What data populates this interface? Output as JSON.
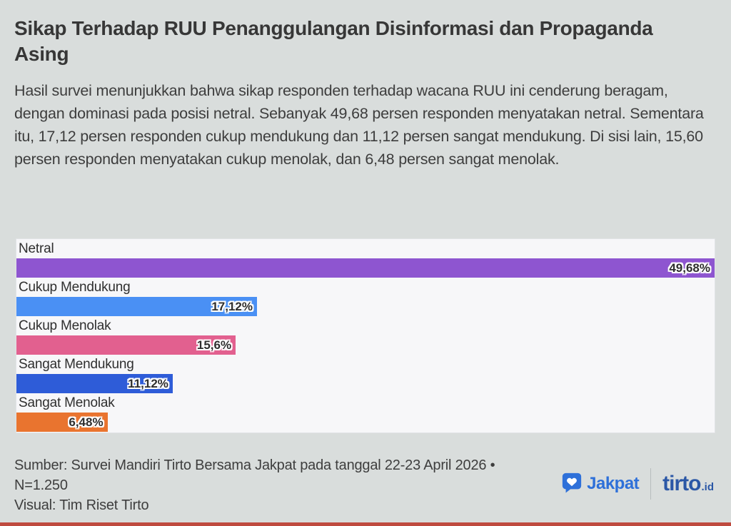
{
  "page": {
    "background_color": "#d9dddc",
    "accent_bar_color": "#bf4a3f"
  },
  "header": {
    "title": "Sikap Terhadap RUU Penanggulangan Disinformasi dan Propaganda Asing"
  },
  "intro": {
    "text": "Hasil survei menunjukkan bahwa sikap responden terhadap wacana RUU ini cenderung beragam, dengan dominasi pada posisi netral. Sebanyak 49,68 persen responden menyatakan netral. Sementara itu, 17,12 persen responden cukup mendukung dan 11,12 persen sangat mendukung. Di sisi lain, 15,60 persen responden menyatakan cukup menolak, dan 6,48 persen sangat menolak."
  },
  "chart_data": {
    "type": "bar",
    "orientation": "horizontal",
    "title": "",
    "xlabel": "",
    "ylabel": "",
    "grid": false,
    "legend": false,
    "panel_background": "#f7f7f9",
    "categories": [
      "Netral",
      "Cukup Mendukung",
      "Cukup Menolak",
      "Sangat Mendukung",
      "Sangat Menolak"
    ],
    "values": [
      49.68,
      17.12,
      15.6,
      11.12,
      6.48
    ],
    "value_labels": [
      "49,68%",
      "17,12%",
      "15,6%",
      "11,12%",
      "6,48%"
    ],
    "bar_colors": [
      "#8e55d0",
      "#4a90f4",
      "#e2608f",
      "#2e5cd8",
      "#e9742f"
    ],
    "xlim": [
      0,
      49.68
    ]
  },
  "footer": {
    "source_line_1": "Sumber: Survei Mandiri Tirto Bersama Jakpat pada tanggal 22-23 April 2026 •",
    "source_line_2": "N=1.250",
    "visual_line": "Visual: Tim Riset Tirto",
    "logos": {
      "jakpat_label": "Jakpat",
      "jakpat_color": "#2e70d9",
      "tirto_label": "tirto",
      "tirto_suffix": ".id",
      "tirto_color": "#2b57a6"
    }
  }
}
